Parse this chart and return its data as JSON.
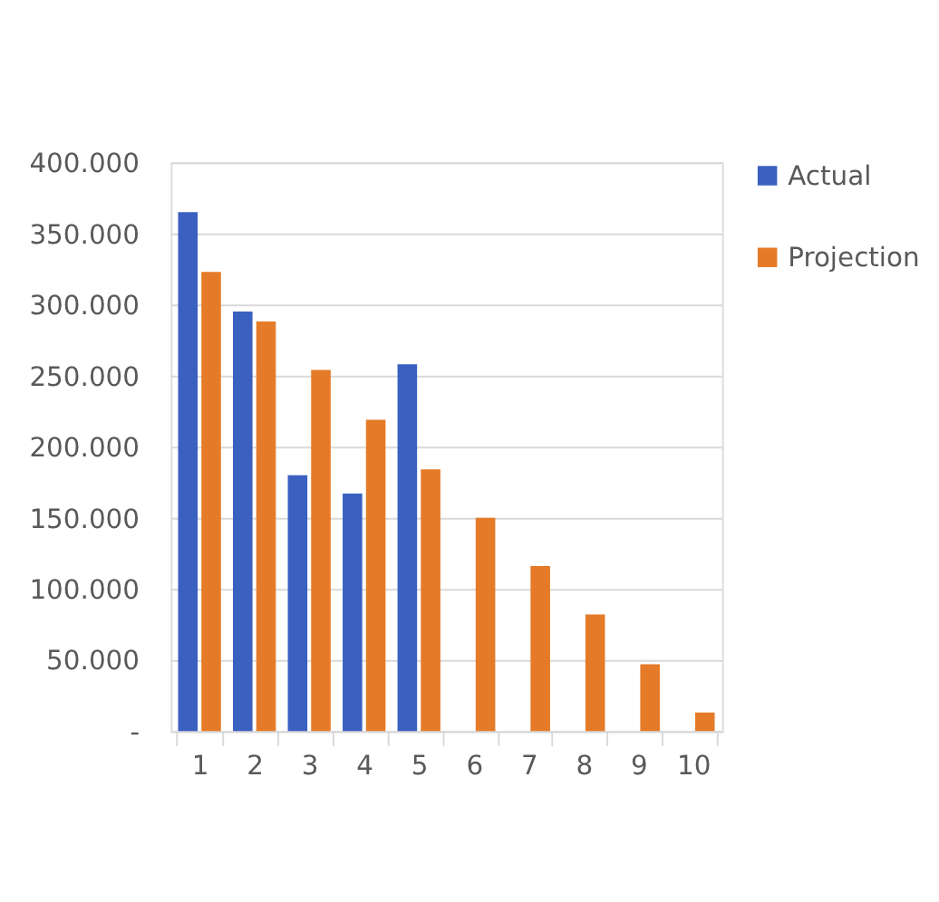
{
  "chart_data": {
    "type": "bar",
    "categories": [
      "1",
      "2",
      "3",
      "4",
      "5",
      "6",
      "7",
      "8",
      "9",
      "10"
    ],
    "series": [
      {
        "name": "Actual",
        "color": "#3a60c0",
        "values": [
          365,
          295,
          180,
          167,
          258,
          null,
          null,
          null,
          null,
          null
        ]
      },
      {
        "name": "Projection",
        "color": "#e57b28",
        "values": [
          323,
          288,
          254,
          219,
          184,
          150,
          116,
          82,
          47,
          13
        ]
      }
    ],
    "ylim": [
      0,
      400
    ],
    "yticks": [
      {
        "value": 0,
        "label": "-"
      },
      {
        "value": 50,
        "label": "50.000"
      },
      {
        "value": 100,
        "label": "100.000"
      },
      {
        "value": 150,
        "label": "150.000"
      },
      {
        "value": 200,
        "label": "200.000"
      },
      {
        "value": 250,
        "label": "250.000"
      },
      {
        "value": 300,
        "label": "300.000"
      },
      {
        "value": 350,
        "label": "350.000"
      },
      {
        "value": 400,
        "label": "400.000"
      }
    ],
    "grid": "y",
    "legend": "right"
  }
}
